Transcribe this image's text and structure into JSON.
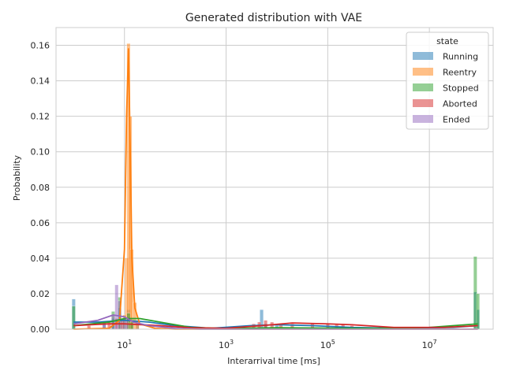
{
  "chart_data": {
    "type": "histogram",
    "title": "Generated distribution with VAE",
    "xlabel": "Interarrival time [ms]",
    "ylabel": "Probability",
    "xscale": "log",
    "xlim": [
      0.45,
      180000000
    ],
    "ylim": [
      0,
      0.17
    ],
    "x_ticks": [
      {
        "value": 10,
        "base": "10",
        "exp": "1"
      },
      {
        "value": 1000,
        "base": "10",
        "exp": "3"
      },
      {
        "value": 100000,
        "base": "10",
        "exp": "5"
      },
      {
        "value": 10000000,
        "base": "10",
        "exp": "7"
      }
    ],
    "y_ticks": [
      0.0,
      0.02,
      0.04,
      0.06,
      0.08,
      0.1,
      0.12,
      0.14,
      0.16
    ],
    "y_tick_labels": [
      "0.00",
      "0.02",
      "0.04",
      "0.06",
      "0.08",
      "0.10",
      "0.12",
      "0.14",
      "0.16"
    ],
    "grid": true,
    "legend": {
      "title": "state",
      "placement": "top-right"
    },
    "series": [
      {
        "name": "Running",
        "color": "#1f77b4",
        "bars": [
          [
            1,
            0.017
          ],
          [
            4,
            0.004
          ],
          [
            6,
            0.006
          ],
          [
            8,
            0.012
          ],
          [
            9,
            0.006
          ],
          [
            12,
            0.011
          ],
          [
            14,
            0.005
          ],
          [
            18,
            0.003
          ],
          [
            5000,
            0.011
          ],
          [
            6000,
            0.003
          ],
          [
            10000,
            0.002
          ],
          [
            80000000,
            0.021
          ],
          [
            90000000,
            0.011
          ]
        ],
        "kde": [
          [
            1,
            0.004
          ],
          [
            3,
            0.004
          ],
          [
            10,
            0.005
          ],
          [
            30,
            0.004
          ],
          [
            100,
            0.002
          ],
          [
            500,
            0.0005
          ],
          [
            3000,
            0.002
          ],
          [
            10000,
            0.0025
          ],
          [
            50000,
            0.002
          ],
          [
            300000,
            0.001
          ],
          [
            3000000,
            0.0005
          ],
          [
            30000000,
            0.001
          ],
          [
            90000000,
            0.002
          ]
        ]
      },
      {
        "name": "Reentry",
        "color": "#ff7f0e",
        "bars": [
          [
            8,
            0.004
          ],
          [
            10,
            0.008
          ],
          [
            11,
            0.04
          ],
          [
            12,
            0.161
          ],
          [
            13,
            0.12
          ],
          [
            14,
            0.045
          ],
          [
            16,
            0.015
          ],
          [
            18,
            0.005
          ]
        ],
        "kde": [
          [
            1,
            0.0
          ],
          [
            5,
            0.0005
          ],
          [
            8,
            0.005
          ],
          [
            10,
            0.045
          ],
          [
            11,
            0.12
          ],
          [
            12,
            0.158
          ],
          [
            13,
            0.1
          ],
          [
            14,
            0.04
          ],
          [
            16,
            0.012
          ],
          [
            20,
            0.003
          ],
          [
            40,
            0.0005
          ],
          [
            100,
            0.0
          ],
          [
            90000000,
            0.0
          ]
        ]
      },
      {
        "name": "Stopped",
        "color": "#2ca02c",
        "bars": [
          [
            1,
            0.013
          ],
          [
            6,
            0.01
          ],
          [
            8,
            0.018
          ],
          [
            10,
            0.006
          ],
          [
            12,
            0.009
          ],
          [
            14,
            0.004
          ],
          [
            80000000,
            0.041
          ],
          [
            90000000,
            0.02
          ]
        ],
        "kde": [
          [
            1,
            0.002
          ],
          [
            5,
            0.004
          ],
          [
            10,
            0.006
          ],
          [
            20,
            0.006
          ],
          [
            50,
            0.004
          ],
          [
            200,
            0.001
          ],
          [
            1000,
            0.0003
          ],
          [
            10000,
            0.0008
          ],
          [
            100000,
            0.0006
          ],
          [
            1000000,
            0.0005
          ],
          [
            10000000,
            0.001
          ],
          [
            90000000,
            0.003
          ]
        ]
      },
      {
        "name": "Aborted",
        "color": "#d62728",
        "bars": [
          [
            2,
            0.002
          ],
          [
            5,
            0.004
          ],
          [
            7,
            0.006
          ],
          [
            9,
            0.005
          ],
          [
            3500,
            0.003
          ],
          [
            4500,
            0.004
          ],
          [
            6000,
            0.005
          ],
          [
            8000,
            0.004
          ],
          [
            12000,
            0.003
          ],
          [
            20000,
            0.003
          ],
          [
            50000,
            0.003
          ],
          [
            100000,
            0.003
          ],
          [
            150000,
            0.003
          ],
          [
            200000,
            0.003
          ],
          [
            300000,
            0.002
          ]
        ],
        "kde": [
          [
            1,
            0.002
          ],
          [
            5,
            0.003
          ],
          [
            10,
            0.003
          ],
          [
            50,
            0.002
          ],
          [
            200,
            0.0008
          ],
          [
            1000,
            0.0005
          ],
          [
            5000,
            0.002
          ],
          [
            20000,
            0.0035
          ],
          [
            100000,
            0.003
          ],
          [
            300000,
            0.0025
          ],
          [
            2000000,
            0.001
          ],
          [
            20000000,
            0.001
          ],
          [
            90000000,
            0.002
          ]
        ]
      },
      {
        "name": "Ended",
        "color": "#9467bd",
        "bars": [
          [
            4,
            0.004
          ],
          [
            6,
            0.008
          ],
          [
            7,
            0.025
          ],
          [
            8,
            0.016
          ],
          [
            10,
            0.006
          ],
          [
            11,
            0.005
          ]
        ],
        "kde": [
          [
            1,
            0.003
          ],
          [
            3,
            0.005
          ],
          [
            6,
            0.008
          ],
          [
            10,
            0.007
          ],
          [
            15,
            0.004
          ],
          [
            30,
            0.002
          ],
          [
            100,
            0.0005
          ],
          [
            300,
            0.0
          ],
          [
            90000000,
            0.0
          ]
        ]
      }
    ]
  }
}
